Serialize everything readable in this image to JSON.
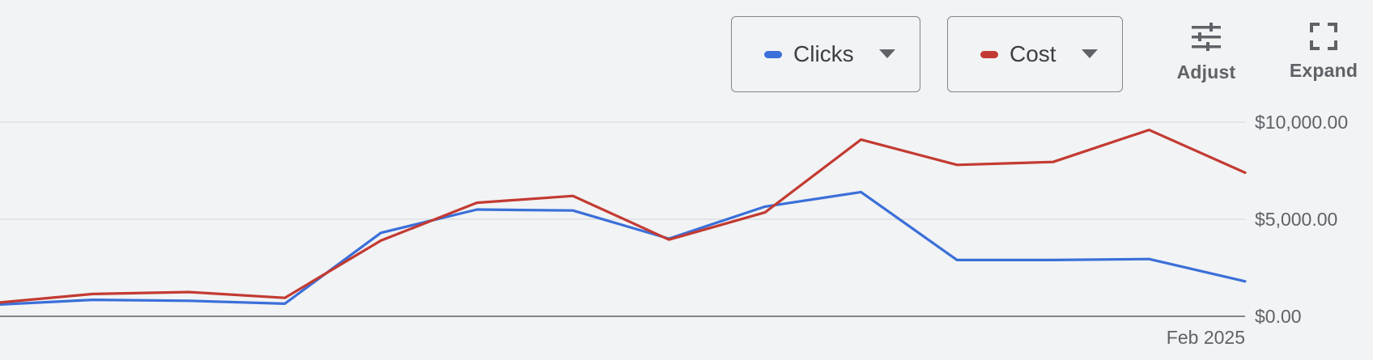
{
  "controls": {
    "metrics": [
      {
        "label": "Clicks",
        "color": "#3b6fd9"
      },
      {
        "label": "Cost",
        "color": "#c33a32"
      }
    ],
    "adjust_label": "Adjust",
    "expand_label": "Expand"
  },
  "chart_data": {
    "type": "line",
    "x": [
      0,
      1,
      2,
      3,
      4,
      5,
      6,
      7,
      8,
      9,
      10,
      11,
      12,
      13
    ],
    "x_tick_labels": [
      {
        "x": 13,
        "label": "Feb 2025"
      }
    ],
    "ylim": [
      0,
      10000
    ],
    "y_ticks": [
      {
        "value": 0,
        "label": "$0.00"
      },
      {
        "value": 5000,
        "label": "$5,000.00"
      },
      {
        "value": 10000,
        "label": "$10,000.00"
      }
    ],
    "grid": true,
    "series": [
      {
        "name": "Clicks",
        "color": "#3b6fd9",
        "values": [
          600,
          850,
          800,
          650,
          4300,
          5500,
          5450,
          4000,
          5650,
          6400,
          2900,
          2900,
          2950,
          1800
        ]
      },
      {
        "name": "Cost",
        "color": "#c33a32",
        "values": [
          700,
          1150,
          1250,
          950,
          3900,
          5850,
          6200,
          3950,
          5350,
          9100,
          7800,
          7950,
          9600,
          7400
        ]
      }
    ]
  }
}
